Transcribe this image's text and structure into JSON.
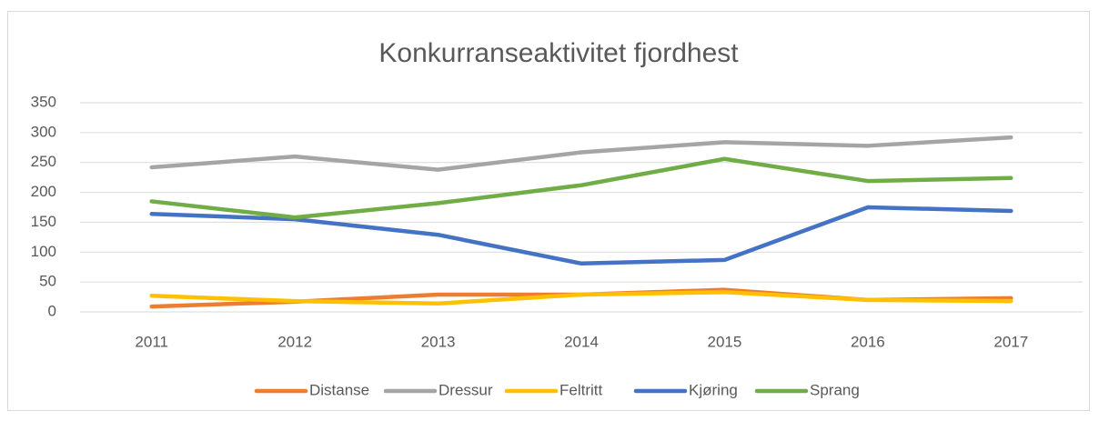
{
  "chart_data": {
    "type": "line",
    "title": "Konkurranseaktivitet fjordhest",
    "categories": [
      "2011",
      "2012",
      "2013",
      "2014",
      "2015",
      "2016",
      "2017"
    ],
    "series": [
      {
        "name": "Distanse",
        "color": "#ed7d31",
        "values": [
          9,
          17,
          29,
          29,
          37,
          20,
          23
        ]
      },
      {
        "name": "Dressur",
        "color": "#a5a5a5",
        "values": [
          242,
          260,
          238,
          267,
          284,
          278,
          292
        ]
      },
      {
        "name": "Feltritt",
        "color": "#ffc000",
        "values": [
          27,
          18,
          14,
          29,
          33,
          20,
          18
        ]
      },
      {
        "name": "Kjøring",
        "color": "#4472c4",
        "values": [
          164,
          155,
          129,
          81,
          87,
          175,
          169
        ]
      },
      {
        "name": "Sprang",
        "color": "#70ad47",
        "values": [
          185,
          158,
          182,
          212,
          256,
          219,
          224
        ]
      }
    ],
    "ylim": [
      0,
      350
    ],
    "yticks": [
      0,
      50,
      100,
      150,
      200,
      250,
      300,
      350
    ],
    "grid": true,
    "legend": "bottom"
  }
}
